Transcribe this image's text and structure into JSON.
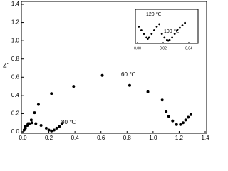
{
  "chart_data": [
    {
      "type": "scatter",
      "y_label": "Z''",
      "xlim": [
        0,
        1.4
      ],
      "ylim": [
        0,
        1.4
      ],
      "xticks": [
        {
          "value": 0,
          "label": "0.0"
        },
        0.2,
        0.4,
        0.6,
        0.8,
        {
          "value": 1,
          "label": "1.0"
        },
        1.2,
        1.4
      ],
      "yticks": [
        {
          "value": 0,
          "label": "0.0"
        },
        0.2,
        0.4,
        0.6,
        0.8,
        {
          "value": 1,
          "label": "1.0"
        },
        1.2,
        1.4
      ],
      "series": [
        {
          "name": "60 ℃",
          "color": "#000000",
          "x": [
            0.01,
            0.02,
            0.035,
            0.05,
            0.065,
            0.09,
            0.12,
            0.22,
            0.39,
            0.61,
            0.82,
            0.96,
            1.07,
            1.1,
            1.12,
            1.15,
            1.18,
            1.21,
            1.23,
            1.25,
            1.27,
            1.29
          ],
          "values": [
            0.02,
            0.04,
            0.07,
            0.09,
            0.13,
            0.21,
            0.3,
            0.42,
            0.5,
            0.62,
            0.51,
            0.44,
            0.35,
            0.22,
            0.17,
            0.12,
            0.08,
            0.08,
            0.1,
            0.13,
            0.16,
            0.19
          ]
        },
        {
          "name": "80 ℃",
          "color": "#000000",
          "x": [
            0.02,
            0.04,
            0.07,
            0.1,
            0.14,
            0.18,
            0.2,
            0.22,
            0.24,
            0.26,
            0.28,
            0.3
          ],
          "values": [
            0.06,
            0.09,
            0.1,
            0.09,
            0.07,
            0.04,
            0.02,
            0.01,
            0.02,
            0.04,
            0.06,
            0.09
          ]
        }
      ]
    },
    {
      "type": "scatter",
      "xlim": [
        0,
        0.045
      ],
      "ylim": [
        0,
        0.025
      ],
      "xticks": [
        {
          "value": 0,
          "label": "0.00"
        },
        {
          "value": 0.02,
          "label": "0.02"
        },
        {
          "value": 0.04,
          "label": "0.04"
        }
      ],
      "series": [
        {
          "name": "120 ℃",
          "color": "#000000",
          "x": [
            0.001,
            0.003,
            0.005,
            0.007,
            0.008,
            0.009,
            0.011,
            0.013,
            0.015,
            0.017
          ],
          "values": [
            0.012,
            0.009,
            0.006,
            0.003,
            0.002,
            0.003,
            0.006,
            0.009,
            0.012,
            0.014
          ]
        },
        {
          "name": "100 ℃",
          "color": "#000000",
          "x": [
            0.019,
            0.021,
            0.023,
            0.024,
            0.025,
            0.027,
            0.029,
            0.031,
            0.033,
            0.035,
            0.037
          ],
          "values": [
            0.006,
            0.003,
            0.001,
            0.0005,
            0.001,
            0.003,
            0.006,
            0.009,
            0.011,
            0.013,
            0.015
          ]
        }
      ]
    }
  ]
}
